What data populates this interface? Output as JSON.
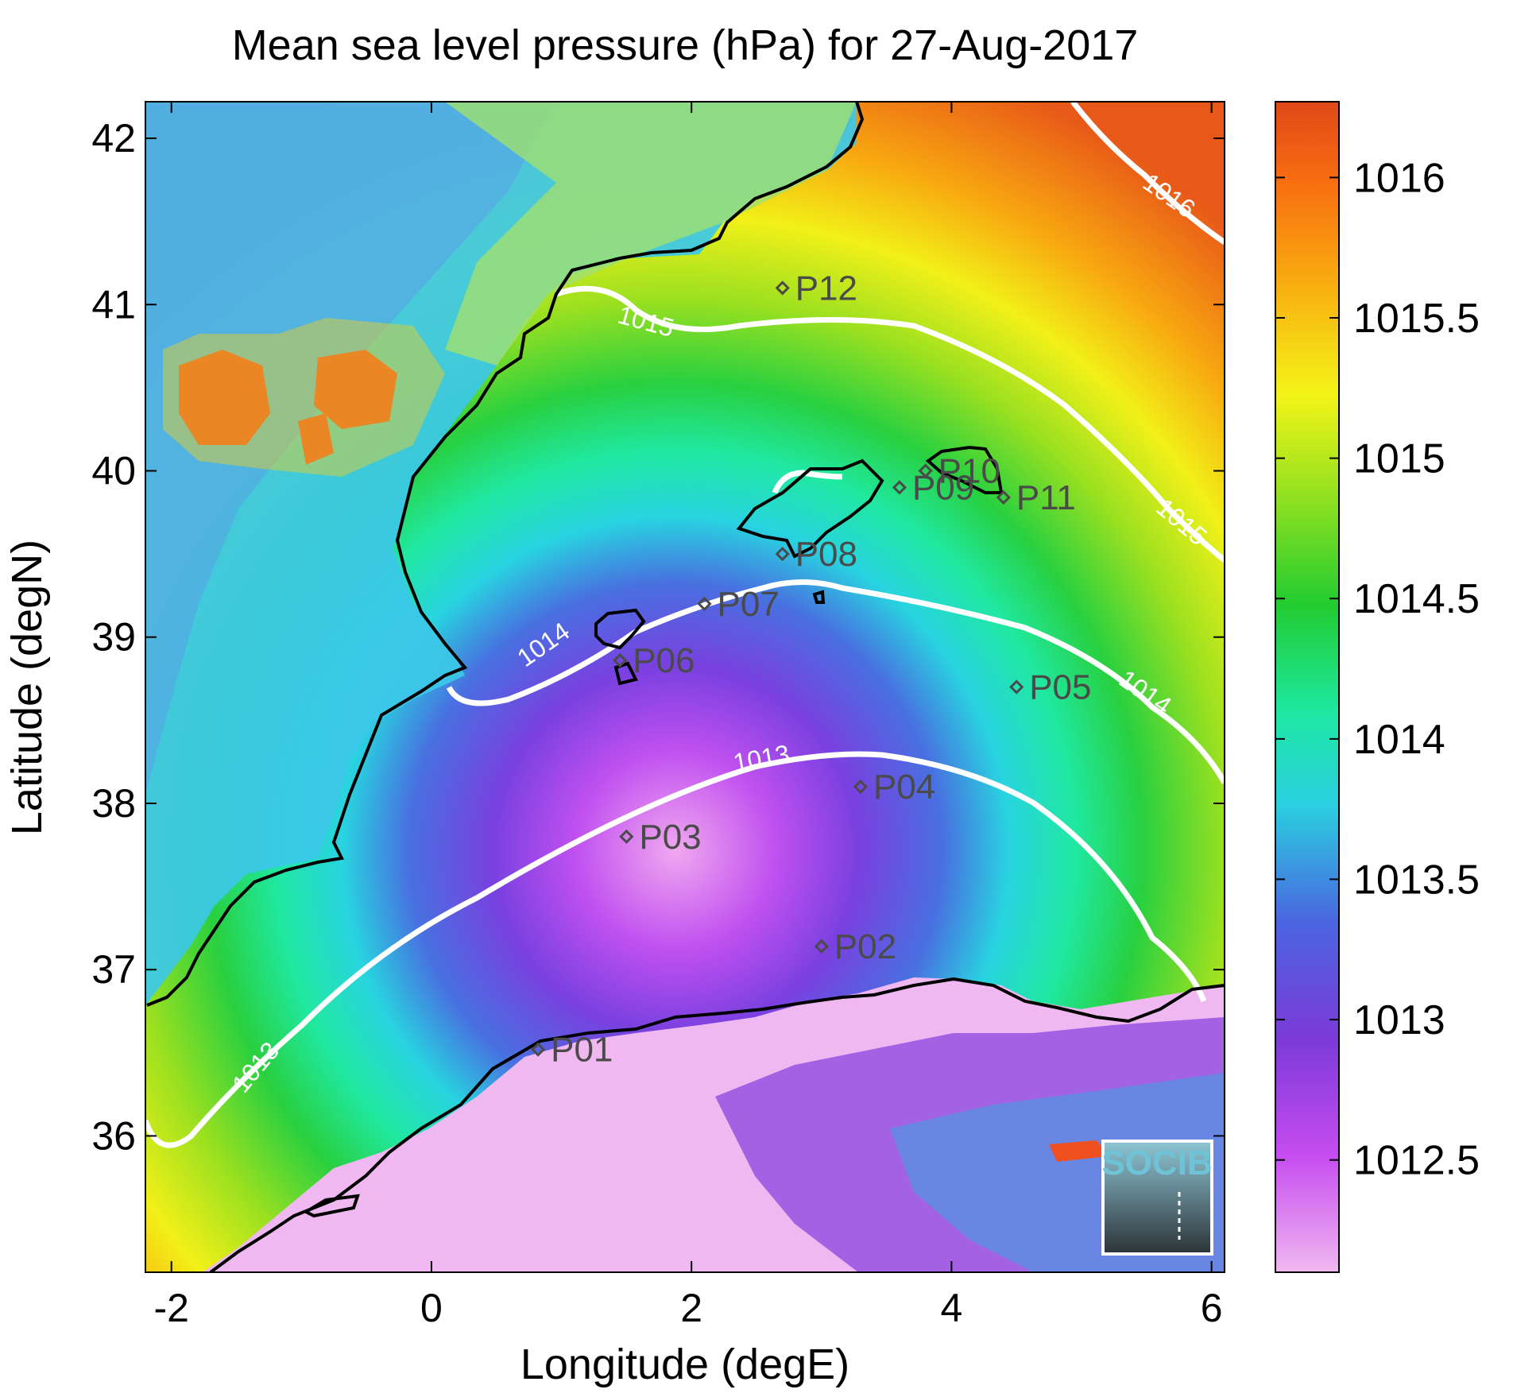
{
  "map": {
    "title": "Mean sea level pressure (hPa) for 27-Aug-2017",
    "xlabel": "Longitude (degE)",
    "ylabel": "Latitude (degN)",
    "xlim": [
      -2.2,
      6.1
    ],
    "ylim": [
      35.18,
      42.22
    ],
    "xticks": [
      -2,
      0,
      2,
      4,
      6
    ],
    "yticks": [
      36,
      37,
      38,
      39,
      40,
      41,
      42
    ],
    "xtick_labels": [
      "-2",
      "0",
      "2",
      "4",
      "6"
    ],
    "ytick_labels": [
      "36",
      "37",
      "38",
      "39",
      "40",
      "41",
      "42"
    ]
  },
  "colorbar": {
    "range": [
      1012.1,
      1016.27
    ],
    "ticks": [
      1012.5,
      1013,
      1013.5,
      1014,
      1014.5,
      1015,
      1015.5,
      1016
    ],
    "tick_labels": [
      "1012.5",
      "1013",
      "1013.5",
      "1014",
      "1014.5",
      "1015",
      "1015.5",
      "1016"
    ],
    "colors": [
      "#f0b8f0",
      "#c64cf0",
      "#7b3ad8",
      "#4a66e0",
      "#2ad0e0",
      "#1ee8a0",
      "#22cc30",
      "#8ee020",
      "#f4f418",
      "#f8b010",
      "#f86e10",
      "#e04818"
    ]
  },
  "contours": [
    {
      "level": 1013,
      "label": "1013"
    },
    {
      "level": 1014,
      "label": "1014"
    },
    {
      "level": 1015,
      "label": "1015"
    },
    {
      "level": 1016,
      "label": "1016"
    }
  ],
  "stations": [
    {
      "name": "P01",
      "lon": 0.82,
      "lat": 36.52
    },
    {
      "name": "P02",
      "lon": 3.0,
      "lat": 37.14
    },
    {
      "name": "P03",
      "lon": 1.5,
      "lat": 37.8
    },
    {
      "name": "P04",
      "lon": 3.3,
      "lat": 38.1
    },
    {
      "name": "P05",
      "lon": 4.5,
      "lat": 38.7
    },
    {
      "name": "P06",
      "lon": 1.45,
      "lat": 38.86
    },
    {
      "name": "P07",
      "lon": 2.1,
      "lat": 39.2
    },
    {
      "name": "P08",
      "lon": 2.7,
      "lat": 39.5
    },
    {
      "name": "P09",
      "lon": 3.6,
      "lat": 39.9
    },
    {
      "name": "P10",
      "lon": 3.8,
      "lat": 40.0
    },
    {
      "name": "P11",
      "lon": 4.4,
      "lat": 39.84
    },
    {
      "name": "P12",
      "lon": 2.7,
      "lat": 41.1
    }
  ],
  "logo": {
    "text": "SOCIB"
  }
}
